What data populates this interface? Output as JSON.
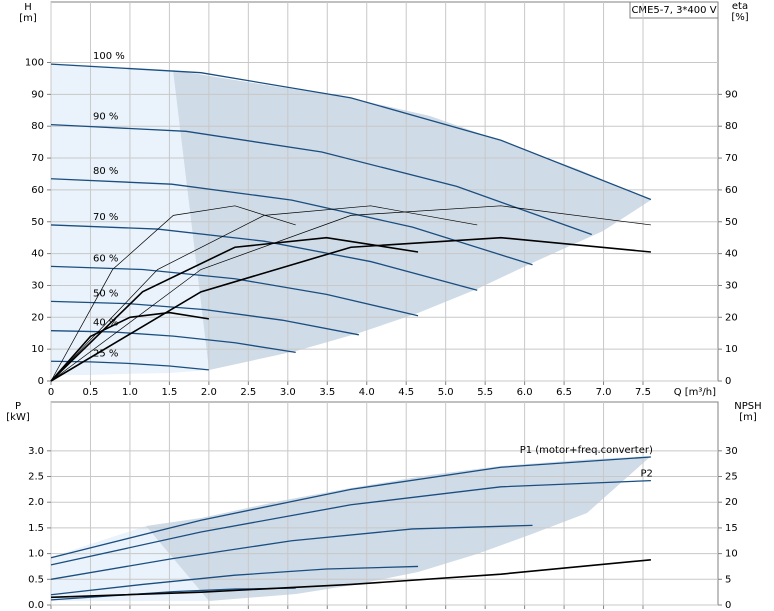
{
  "chart_data": [
    {
      "type": "line",
      "legend_box": "CME5-7, 3*400 V",
      "ylabel": "H",
      "yunit": "[m]",
      "y2label": "eta",
      "y2unit": "[%]",
      "xlabel": "Q [m³/h]",
      "xlim": [
        0,
        8.45
      ],
      "ylim": [
        0,
        119
      ],
      "y2lim": [
        0,
        119
      ],
      "grid": true,
      "show_xtick_labels": true,
      "series_label": "start",
      "xticks": [
        0,
        0.5,
        {
          "value": 1,
          "label": "1.0"
        },
        1.5,
        {
          "value": 2,
          "label": "2.0"
        },
        2.5,
        {
          "value": 3,
          "label": "3.0"
        },
        3.5,
        {
          "value": 4,
          "label": "4.0"
        },
        4.5,
        {
          "value": 5,
          "label": "5.0"
        },
        5.5,
        {
          "value": 6,
          "label": "6.0"
        },
        6.5,
        {
          "value": 7,
          "label": "7.0"
        },
        7.5
      ],
      "yticks": [
        0,
        10,
        20,
        30,
        40,
        50,
        60,
        70,
        80,
        90,
        100
      ],
      "y2ticks": [
        0,
        10,
        20,
        30,
        40,
        50,
        60,
        70,
        80,
        90
      ],
      "series": [
        {
          "name": "100 %",
          "color": "#1a4e80",
          "line_width": 1.3,
          "x": [
            0,
            1.9,
            3.8,
            5.7,
            7.6
          ],
          "values": [
            99.5,
            96.8,
            88.9,
            75.6,
            57.0
          ]
        },
        {
          "name": "90 %",
          "color": "#1a4e80",
          "line_width": 1.3,
          "x": [
            0,
            1.71,
            3.43,
            5.14,
            6.85
          ],
          "values": [
            80.5,
            78.4,
            71.9,
            61.1,
            46.0
          ]
        },
        {
          "name": "80 %",
          "color": "#1a4e80",
          "line_width": 1.3,
          "x": [
            0,
            1.53,
            3.05,
            4.58,
            6.1
          ],
          "values": [
            63.5,
            61.8,
            56.8,
            48.3,
            36.5
          ]
        },
        {
          "name": "70 %",
          "color": "#1a4e80",
          "line_width": 1.3,
          "x": [
            0,
            1.35,
            2.7,
            4.05,
            5.4
          ],
          "values": [
            49,
            47.7,
            43.9,
            37.5,
            28.5
          ]
        },
        {
          "name": "60 %",
          "color": "#1a4e80",
          "line_width": 1.3,
          "x": [
            0,
            1.16,
            2.33,
            3.49,
            4.65
          ],
          "values": [
            36,
            35.0,
            32.1,
            27.2,
            20.5
          ]
        },
        {
          "name": "50 %",
          "color": "#1a4e80",
          "line_width": 1.3,
          "x": [
            0,
            0.98,
            1.95,
            2.93,
            3.9
          ],
          "values": [
            25,
            24.3,
            22.4,
            19.1,
            14.5
          ]
        },
        {
          "name": "40 %",
          "color": "#1a4e80",
          "line_width": 1.3,
          "x": [
            0,
            0.78,
            1.55,
            2.33,
            3.1
          ],
          "values": [
            15.8,
            15.4,
            14.1,
            12.0,
            9.0
          ]
        },
        {
          "name": "25 %",
          "color": "#1a4e80",
          "line_width": 1.3,
          "x": [
            0,
            0.5,
            1.0,
            1.5,
            2.0
          ],
          "values": [
            6.2,
            6.0,
            5.5,
            4.7,
            3.5
          ]
        },
        {
          "color": "#000000",
          "line_width": 0.7,
          "axis": "y2",
          "x": [
            0,
            1.9,
            3.8,
            5.7,
            7.6
          ],
          "values": [
            0,
            35,
            52,
            55,
            49
          ]
        },
        {
          "color": "#000000",
          "line_width": 0.7,
          "axis": "y2",
          "x": [
            0,
            1.35,
            2.7,
            4.05,
            5.4
          ],
          "values": [
            0,
            35,
            52,
            55,
            49
          ]
        },
        {
          "color": "#000000",
          "line_width": 0.7,
          "axis": "y2",
          "x": [
            0,
            0.78,
            1.55,
            2.33,
            3.1
          ],
          "values": [
            0,
            35,
            52,
            55,
            49
          ]
        },
        {
          "color": "#000000",
          "line_width": 1.6,
          "axis": "y2",
          "x": [
            0,
            1.9,
            3.8,
            5.7,
            7.6
          ],
          "values": [
            0,
            28,
            42,
            45,
            40.5
          ]
        },
        {
          "color": "#000000",
          "line_width": 1.6,
          "axis": "y2",
          "x": [
            0,
            1.16,
            2.33,
            3.49,
            4.65
          ],
          "values": [
            0,
            28,
            42,
            45,
            40.5
          ]
        },
        {
          "color": "#000000",
          "line_width": 1.6,
          "axis": "y2",
          "x": [
            0,
            0.5,
            1.0,
            1.5,
            2.0
          ],
          "values": [
            0,
            14,
            20,
            21.5,
            19.5
          ]
        }
      ]
    },
    {
      "type": "line",
      "ylabel": "P",
      "yunit": "[kW]",
      "y2label": "NPSH",
      "y2unit": "[m]",
      "xlim": [
        0,
        8.45
      ],
      "ylim": [
        0,
        3.95
      ],
      "y2lim": [
        0,
        39.5
      ],
      "grid": true,
      "show_xtick_labels": false,
      "series_label": "end",
      "xticks": [
        0,
        0.5,
        1,
        1.5,
        2,
        2.5,
        3,
        3.5,
        4,
        4.5,
        5,
        5.5,
        6,
        6.5,
        7,
        7.5
      ],
      "yticks": [
        {
          "value": 0,
          "label": "0.0"
        },
        0.5,
        {
          "value": 1,
          "label": "1.0"
        },
        1.5,
        {
          "value": 2,
          "label": "2.0"
        },
        2.5,
        {
          "value": 3,
          "label": "3.0"
        }
      ],
      "y2ticks": [
        0,
        5,
        10,
        15,
        20,
        25,
        30
      ],
      "series": [
        {
          "name": "P1 (motor+freq.converter)",
          "color": "#1a4e80",
          "line_width": 1.3,
          "x": [
            0,
            1.9,
            3.8,
            5.7,
            7.6
          ],
          "values": [
            0.92,
            1.65,
            2.25,
            2.68,
            2.88
          ]
        },
        {
          "name": "P2",
          "color": "#1a4e80",
          "line_width": 1.3,
          "x": [
            0,
            1.9,
            3.8,
            5.7,
            7.6
          ],
          "values": [
            0.78,
            1.42,
            1.95,
            2.3,
            2.42
          ]
        },
        {
          "color": "#1a4e80",
          "line_width": 1.3,
          "x": [
            0,
            1.53,
            3.05,
            4.58,
            6.1
          ],
          "values": [
            0.5,
            0.9,
            1.25,
            1.48,
            1.55
          ]
        },
        {
          "color": "#1a4e80",
          "line_width": 1.3,
          "x": [
            0,
            1.16,
            2.33,
            3.49,
            4.65
          ],
          "values": [
            0.2,
            0.4,
            0.58,
            0.7,
            0.75
          ]
        },
        {
          "color": "#1a4e80",
          "line_width": 1.3,
          "x": [
            0,
            0.78,
            1.55,
            2.33,
            3.1
          ],
          "values": [
            0.1,
            0.18,
            0.26,
            0.31,
            0.33
          ]
        },
        {
          "color": "#000000",
          "line_width": 1.6,
          "axis": "y2",
          "x": [
            0,
            1.9,
            3.8,
            5.7,
            7.6
          ],
          "values": [
            1.5,
            2.5,
            4.0,
            6.0,
            8.8
          ]
        }
      ]
    }
  ]
}
